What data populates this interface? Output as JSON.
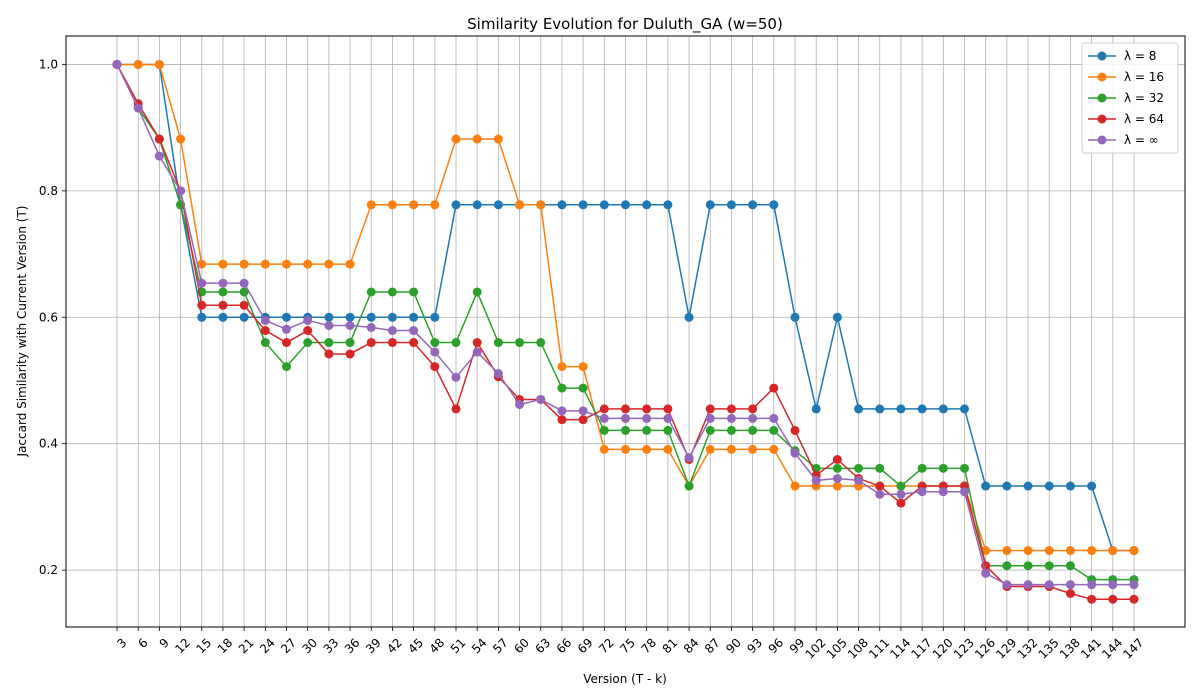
{
  "chart_data": {
    "type": "line",
    "title": "Similarity Evolution for Duluth_GA (w=50)",
    "xlabel": "Version (T - k)",
    "ylabel": "Jaccard Similarity with Current Version (T)",
    "x": [
      3,
      6,
      9,
      12,
      15,
      18,
      21,
      24,
      27,
      30,
      33,
      36,
      39,
      42,
      45,
      48,
      51,
      54,
      57,
      60,
      63,
      66,
      69,
      72,
      75,
      78,
      81,
      84,
      87,
      90,
      93,
      96,
      99,
      102,
      105,
      108,
      111,
      114,
      117,
      120,
      123,
      126,
      129,
      132,
      135,
      138,
      141,
      144,
      147
    ],
    "ylim": [
      0.11,
      1.045
    ],
    "yticks": [
      0.2,
      0.4,
      0.6,
      0.8,
      1.0
    ],
    "grid": true,
    "legend_position": "top-right",
    "series": [
      {
        "name": "λ = 8",
        "color": "#1f77b4",
        "values": [
          1.0,
          1.0,
          1.0,
          0.778,
          0.6,
          0.6,
          0.6,
          0.6,
          0.6,
          0.6,
          0.6,
          0.6,
          0.6,
          0.6,
          0.6,
          0.6,
          0.778,
          0.778,
          0.778,
          0.778,
          0.778,
          0.778,
          0.778,
          0.778,
          0.778,
          0.778,
          0.778,
          0.6,
          0.778,
          0.778,
          0.778,
          0.778,
          0.6,
          0.455,
          0.6,
          0.455,
          0.455,
          0.455,
          0.455,
          0.455,
          0.455,
          0.333,
          0.333,
          0.333,
          0.333,
          0.333,
          0.333,
          0.231,
          0.231
        ]
      },
      {
        "name": "λ = 16",
        "color": "#ff7f0e",
        "values": [
          1.0,
          1.0,
          1.0,
          0.882,
          0.684,
          0.684,
          0.684,
          0.684,
          0.684,
          0.684,
          0.684,
          0.684,
          0.778,
          0.778,
          0.778,
          0.778,
          0.882,
          0.882,
          0.882,
          0.778,
          0.778,
          0.522,
          0.522,
          0.391,
          0.391,
          0.391,
          0.391,
          0.333,
          0.391,
          0.391,
          0.391,
          0.391,
          0.333,
          0.333,
          0.333,
          0.333,
          0.333,
          0.333,
          0.333,
          0.333,
          0.333,
          0.231,
          0.231,
          0.231,
          0.231,
          0.231,
          0.231,
          0.231,
          0.231
        ]
      },
      {
        "name": "λ = 32",
        "color": "#2ca02c",
        "values": [
          1.0,
          0.931,
          0.882,
          0.778,
          0.64,
          0.64,
          0.64,
          0.56,
          0.522,
          0.56,
          0.56,
          0.56,
          0.64,
          0.64,
          0.64,
          0.56,
          0.56,
          0.64,
          0.56,
          0.56,
          0.56,
          0.488,
          0.488,
          0.421,
          0.421,
          0.421,
          0.421,
          0.333,
          0.421,
          0.421,
          0.421,
          0.421,
          0.389,
          0.361,
          0.361,
          0.361,
          0.361,
          0.333,
          0.361,
          0.361,
          0.361,
          0.207,
          0.207,
          0.207,
          0.207,
          0.207,
          0.185,
          0.185,
          0.185
        ]
      },
      {
        "name": "λ = 64",
        "color": "#d62728",
        "values": [
          1.0,
          0.938,
          0.882,
          0.8,
          0.619,
          0.619,
          0.619,
          0.579,
          0.56,
          0.579,
          0.542,
          0.542,
          0.56,
          0.56,
          0.56,
          0.522,
          0.455,
          0.56,
          0.506,
          0.47,
          0.47,
          0.438,
          0.438,
          0.455,
          0.455,
          0.455,
          0.455,
          0.375,
          0.455,
          0.455,
          0.455,
          0.488,
          0.421,
          0.35,
          0.375,
          0.345,
          0.333,
          0.306,
          0.333,
          0.333,
          0.333,
          0.207,
          0.174,
          0.174,
          0.174,
          0.163,
          0.154,
          0.154,
          0.154
        ]
      },
      {
        "name": "λ = ∞",
        "color": "#9467bd",
        "values": [
          1.0,
          0.931,
          0.855,
          0.8,
          0.654,
          0.654,
          0.654,
          0.595,
          0.581,
          0.595,
          0.587,
          0.587,
          0.584,
          0.579,
          0.579,
          0.545,
          0.505,
          0.545,
          0.511,
          0.462,
          0.47,
          0.452,
          0.452,
          0.44,
          0.44,
          0.44,
          0.44,
          0.378,
          0.44,
          0.44,
          0.44,
          0.44,
          0.385,
          0.342,
          0.345,
          0.342,
          0.32,
          0.32,
          0.324,
          0.324,
          0.324,
          0.195,
          0.177,
          0.177,
          0.177,
          0.177,
          0.177,
          0.177,
          0.177
        ]
      }
    ]
  }
}
